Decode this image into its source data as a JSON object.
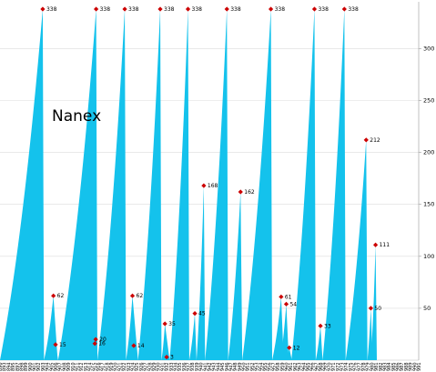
{
  "chart_data": {
    "type": "area",
    "watermark": "Nanex",
    "color": "#14c2ec",
    "marker_color": "#cc0000",
    "ylim": [
      0,
      345
    ],
    "y_ticks": [
      50,
      100,
      150,
      200,
      250,
      300
    ],
    "grid": true,
    "x_labels": [
      "890",
      "893",
      "894",
      "895",
      "897",
      "898",
      "899",
      "900",
      "901",
      "902",
      "903",
      "904",
      "905",
      "906",
      "907",
      "908",
      "909",
      "910",
      "911",
      "912",
      "913",
      "914",
      "915",
      "916",
      "917",
      "918",
      "919",
      "920",
      "921",
      "922",
      "923",
      "924",
      "925",
      "926",
      "927",
      "928",
      "929",
      "930",
      "931",
      "932",
      "933",
      "934",
      "935",
      "936",
      "937",
      "938",
      "939",
      "940",
      "941",
      "942",
      "943",
      "944",
      "945",
      "946",
      "947",
      "948",
      "949",
      "950",
      "951",
      "952",
      "953",
      "954",
      "955",
      "956",
      "957",
      "958",
      "959",
      "960",
      "961",
      "962",
      "963",
      "964",
      "965",
      "966",
      "967",
      "968",
      "969",
      "970",
      "971",
      "972",
      "973",
      "974",
      "975",
      "976",
      "977",
      "978",
      "979",
      "980",
      "981",
      "982",
      "983",
      "984",
      "985",
      "986",
      "987",
      "988",
      "989",
      "990",
      "991"
    ],
    "cycles": [
      {
        "start": 0,
        "peak": 10,
        "end": 10.3,
        "peak_value": 338
      },
      {
        "start": 10.3,
        "peak": 12.5,
        "end": 13.5,
        "peak_value": 62
      },
      {
        "start": 12.2,
        "peak": 13.0,
        "end": 13.6,
        "peak_value": 15
      },
      {
        "start": 13.6,
        "peak": 22.5,
        "end": 22.8,
        "peak_value": 338
      },
      {
        "start": 21.8,
        "peak": 22.4,
        "end": 22.8,
        "peak_value": 20
      },
      {
        "start": 21.6,
        "peak": 22.2,
        "end": 22.8,
        "peak_value": 16
      },
      {
        "start": 22.8,
        "peak": 29.2,
        "end": 29.5,
        "peak_value": 338
      },
      {
        "start": 29.5,
        "peak": 31.0,
        "end": 32.3,
        "peak_value": 62
      },
      {
        "start": 30.5,
        "peak": 31.3,
        "end": 31.8,
        "peak_value": 14
      },
      {
        "start": 32.3,
        "peak": 37.5,
        "end": 37.8,
        "peak_value": 338
      },
      {
        "start": 37.8,
        "peak": 38.6,
        "end": 39.7,
        "peak_value": 35
      },
      {
        "start": 38.3,
        "peak": 39.0,
        "end": 39.5,
        "peak_value": 3
      },
      {
        "start": 39.7,
        "peak": 44.0,
        "end": 44.3,
        "peak_value": 338
      },
      {
        "start": 44.3,
        "peak": 45.6,
        "end": 46.0,
        "peak_value": 45
      },
      {
        "start": 46.0,
        "peak": 47.7,
        "end": 48.0,
        "peak_value": 168
      },
      {
        "start": 48.0,
        "peak": 53.1,
        "end": 53.4,
        "peak_value": 338
      },
      {
        "start": 53.4,
        "peak": 56.3,
        "end": 56.7,
        "peak_value": 162
      },
      {
        "start": 56.7,
        "peak": 63.4,
        "end": 63.7,
        "peak_value": 338
      },
      {
        "start": 63.7,
        "peak": 65.8,
        "end": 66.4,
        "peak_value": 61
      },
      {
        "start": 65.6,
        "peak": 67.0,
        "end": 67.6,
        "peak_value": 54
      },
      {
        "start": 67.0,
        "peak": 67.7,
        "end": 68.3,
        "peak_value": 12
      },
      {
        "start": 68.2,
        "peak": 73.6,
        "end": 73.9,
        "peak_value": 338
      },
      {
        "start": 73.9,
        "peak": 75.0,
        "end": 75.5,
        "peak_value": 33
      },
      {
        "start": 75.5,
        "peak": 80.6,
        "end": 80.9,
        "peak_value": 338
      },
      {
        "start": 80.9,
        "peak": 85.7,
        "end": 86.0,
        "peak_value": 212
      },
      {
        "start": 86.0,
        "peak": 86.8,
        "end": 87.2,
        "peak_value": 50
      },
      {
        "start": 86.8,
        "peak": 87.9,
        "end": 88.2,
        "peak_value": 111
      }
    ],
    "peak_labels": [
      {
        "index": 0,
        "text": "338"
      },
      {
        "index": 1,
        "text": "62"
      },
      {
        "index": 2,
        "text": "15"
      },
      {
        "index": 3,
        "text": "338"
      },
      {
        "index": 4,
        "text": "20"
      },
      {
        "index": 5,
        "text": "16"
      },
      {
        "index": 6,
        "text": "338"
      },
      {
        "index": 7,
        "text": "62"
      },
      {
        "index": 8,
        "text": "14"
      },
      {
        "index": 9,
        "text": "338"
      },
      {
        "index": 10,
        "text": "35"
      },
      {
        "index": 11,
        "text": "3"
      },
      {
        "index": 12,
        "text": "338"
      },
      {
        "index": 13,
        "text": "45"
      },
      {
        "index": 14,
        "text": "168"
      },
      {
        "index": 15,
        "text": "338"
      },
      {
        "index": 16,
        "text": "162"
      },
      {
        "index": 17,
        "text": "338"
      },
      {
        "index": 18,
        "text": "61"
      },
      {
        "index": 19,
        "text": "54"
      },
      {
        "index": 20,
        "text": "12"
      },
      {
        "index": 21,
        "text": "338"
      },
      {
        "index": 22,
        "text": "33"
      },
      {
        "index": 23,
        "text": "338"
      },
      {
        "index": 24,
        "text": "212"
      },
      {
        "index": 25,
        "text": "50"
      },
      {
        "index": 26,
        "text": "111"
      }
    ]
  }
}
